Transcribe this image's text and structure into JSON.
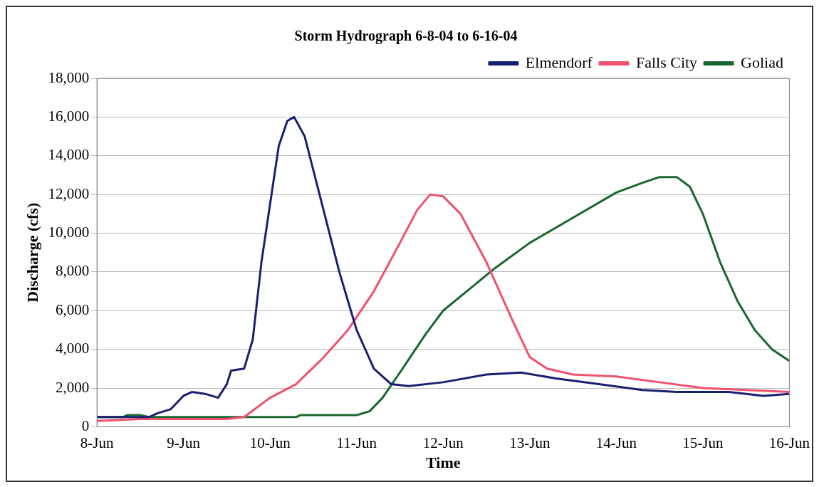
{
  "chart_data": {
    "type": "line",
    "title": "Storm Hydrograph 6-8-04 to 6-16-04",
    "xlabel": "Time",
    "ylabel": "Discharge (cfs)",
    "xlim": [
      "--06-08",
      "--06-16"
    ],
    "xticks": [
      {
        "value": "--06-08",
        "label": "8-Jun"
      },
      {
        "value": "--06-09",
        "label": "9-Jun"
      },
      {
        "value": "--06-10",
        "label": "10-Jun"
      },
      {
        "value": "--06-11",
        "label": "11-Jun"
      },
      {
        "value": "--06-12",
        "label": "12-Jun"
      },
      {
        "value": "--06-13",
        "label": "13-Jun"
      },
      {
        "value": "--06-14",
        "label": "14-Jun"
      },
      {
        "value": "--06-15",
        "label": "15-Jun"
      },
      {
        "value": "--06-16",
        "label": "16-Jun"
      }
    ],
    "ylim": [
      0,
      18000
    ],
    "yticks": [
      {
        "value": 0,
        "label": "0"
      },
      {
        "value": 2000,
        "label": "2,000"
      },
      {
        "value": 4000,
        "label": "4,000"
      },
      {
        "value": 6000,
        "label": "6,000"
      },
      {
        "value": 8000,
        "label": "8,000"
      },
      {
        "value": 10000,
        "label": "10,000"
      },
      {
        "value": 12000,
        "label": "12,000"
      },
      {
        "value": 14000,
        "label": "14,000"
      },
      {
        "value": 16000,
        "label": "16,000"
      },
      {
        "value": 18000,
        "label": "18,000"
      }
    ],
    "grid": "y",
    "legend": "top right",
    "marker": "none",
    "line_style": "solid",
    "series": [
      {
        "name": "Elmendorf",
        "color": "#1a2070",
        "x": [
          "--06-08T00:00",
          "--06-08T12:00",
          "--06-08T14:24",
          "--06-08T16:48",
          "--06-08T20:24",
          "--06-09T00:00",
          "--06-09T02:24",
          "--06-09T06:00",
          "--06-09T09:36",
          "--06-09T12:00",
          "--06-09T13:12",
          "--06-09T16:48",
          "--06-09T19:12",
          "--06-09T21:36",
          "--06-10T00:00",
          "--06-10T02:24",
          "--06-10T04:48",
          "--06-10T06:40",
          "--06-10T09:36",
          "--06-10T14:24",
          "--06-10T19:12",
          "--06-11T00:00",
          "--06-11T04:48",
          "--06-11T09:36",
          "--06-11T14:24",
          "--06-12T00:00",
          "--06-12T12:00",
          "--06-12T21:36",
          "--06-13T07:12",
          "--06-13T19:12",
          "--06-14T07:12",
          "--06-14T16:48",
          "--06-15T07:12",
          "--06-15T16:48",
          "--06-16T00:00"
        ],
        "values": [
          500,
          500,
          500,
          700,
          900,
          1600,
          1800,
          1700,
          1500,
          2200,
          2900,
          3000,
          4500,
          8500,
          11500,
          14500,
          15800,
          16000,
          15000,
          11500,
          8000,
          5000,
          3000,
          2200,
          2100,
          2300,
          2700,
          2800,
          2500,
          2200,
          1900,
          1800,
          1800,
          1600,
          1700
        ]
      },
      {
        "name": "Falls City",
        "color": "#f0506e",
        "x": [
          "--06-08T00:00",
          "--06-08T12:00",
          "--06-09T00:00",
          "--06-09T12:00",
          "--06-09T16:48",
          "--06-10T00:00",
          "--06-10T07:12",
          "--06-10T14:24",
          "--06-10T21:36",
          "--06-11T04:48",
          "--06-11T12:00",
          "--06-11T16:48",
          "--06-11T20:24",
          "--06-12T00:00",
          "--06-12T04:48",
          "--06-12T12:00",
          "--06-12T19:12",
          "--06-13T00:00",
          "--06-13T04:48",
          "--06-13T12:00",
          "--06-14T00:00",
          "--06-14T12:00",
          "--06-15T00:00",
          "--06-15T12:00",
          "--06-16T00:00"
        ],
        "values": [
          300,
          400,
          400,
          400,
          500,
          1500,
          2200,
          3500,
          5000,
          7000,
          9500,
          11200,
          12000,
          11900,
          11000,
          8500,
          5500,
          3600,
          3000,
          2700,
          2600,
          2300,
          2000,
          1900,
          1800
        ]
      },
      {
        "name": "Goliad",
        "color": "#1a6630",
        "x": [
          "--06-08T00:00",
          "--06-08T07:12",
          "--06-08T08:24",
          "--06-08T12:00",
          "--06-08T14:24",
          "--06-09T12:00",
          "--06-10T07:12",
          "--06-10T08:24",
          "--06-11T00:00",
          "--06-11T03:36",
          "--06-11T07:12",
          "--06-11T12:00",
          "--06-11T19:12",
          "--06-12T00:00",
          "--06-12T07:12",
          "--06-12T14:24",
          "--06-13T00:00",
          "--06-13T12:00",
          "--06-14T00:00",
          "--06-14T07:12",
          "--06-14T12:00",
          "--06-14T16:48",
          "--06-14T20:24",
          "--06-15T00:00",
          "--06-15T04:48",
          "--06-15T09:36",
          "--06-15T14:24",
          "--06-15T19:12",
          "--06-16T00:00"
        ],
        "values": [
          500,
          500,
          600,
          600,
          500,
          500,
          500,
          600,
          600,
          800,
          1500,
          2800,
          4800,
          6000,
          7100,
          8200,
          9500,
          10800,
          12100,
          12600,
          12900,
          12900,
          12400,
          11000,
          8500,
          6500,
          5000,
          4000,
          3400
        ]
      }
    ]
  }
}
